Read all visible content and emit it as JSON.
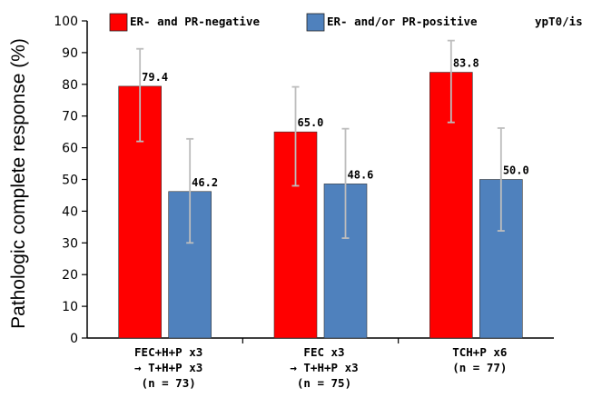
{
  "chart_data": {
    "type": "bar",
    "title": "",
    "note": "ypT0/is",
    "xlabel": "",
    "ylabel": "Pathologic complete response (%)",
    "ylim": [
      0,
      100
    ],
    "yticks": [
      0,
      10,
      20,
      30,
      40,
      50,
      60,
      70,
      80,
      90,
      100
    ],
    "legend_position": "top",
    "categories": [
      [
        "FEC+H+P x3",
        "→ T+H+P x3",
        "(n = 73)"
      ],
      [
        "FEC x3",
        "→ T+H+P x3",
        "(n = 75)"
      ],
      [
        "TCH+P x6",
        "(n = 77)"
      ]
    ],
    "series": [
      {
        "name": "ER- and PR-negative",
        "color": "#ff0000",
        "values": [
          79.4,
          65.0,
          83.8
        ],
        "value_labels": [
          "79.4",
          "65.0",
          "83.8"
        ],
        "error_low": [
          62.0,
          48.0,
          68.0
        ],
        "error_high": [
          91.2,
          79.2,
          93.8
        ]
      },
      {
        "name": "ER- and/or PR-positive",
        "color": "#4f81bd",
        "values": [
          46.2,
          48.6,
          50.0
        ],
        "value_labels": [
          "46.2",
          "48.6",
          "50.0"
        ],
        "error_low": [
          30.0,
          31.5,
          33.8
        ],
        "error_high": [
          62.8,
          66.0,
          66.2
        ]
      }
    ]
  }
}
